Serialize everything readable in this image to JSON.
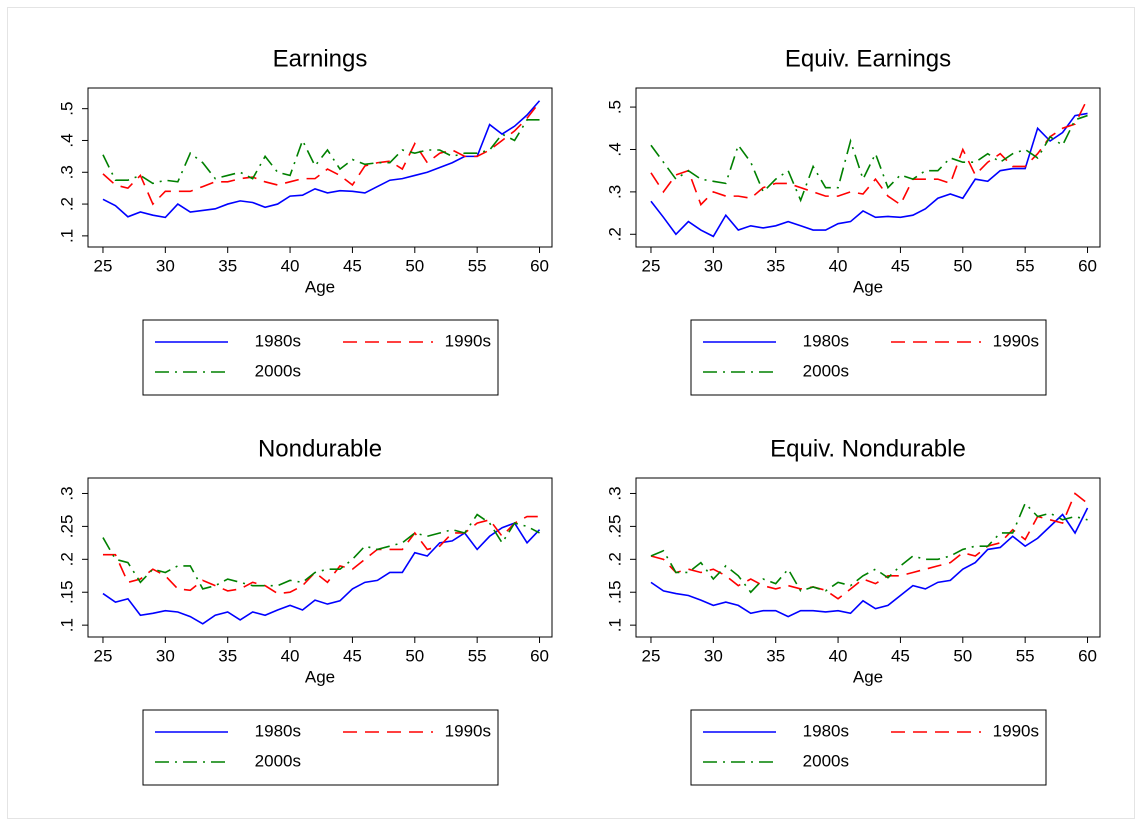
{
  "chart_data": [
    {
      "type": "line",
      "title": "Earnings",
      "xlabel": "Age",
      "x": [
        25,
        26,
        27,
        28,
        29,
        30,
        31,
        32,
        33,
        34,
        35,
        36,
        37,
        38,
        39,
        40,
        41,
        42,
        43,
        44,
        45,
        46,
        47,
        48,
        49,
        50,
        51,
        52,
        53,
        54,
        55,
        56,
        57,
        58,
        59,
        60
      ],
      "xlim": [
        23.8,
        61.0
      ],
      "xticks": [
        25,
        30,
        35,
        40,
        45,
        50,
        55,
        60
      ],
      "ylim": [
        0.065,
        0.565
      ],
      "yticks": [
        {
          "value": 0.1,
          "label": ".1"
        },
        {
          "value": 0.2,
          "label": ".2"
        },
        {
          "value": 0.3,
          "label": ".3"
        },
        {
          "value": 0.4,
          "label": ".4"
        },
        {
          "value": 0.5,
          "label": ".5"
        }
      ],
      "legend_position": "bottom",
      "series": [
        {
          "name": "1980s",
          "color": "#0000ff",
          "style": "solid",
          "values": [
            0.215,
            0.195,
            0.16,
            0.175,
            0.165,
            0.158,
            0.2,
            0.175,
            0.18,
            0.185,
            0.2,
            0.21,
            0.205,
            0.19,
            0.2,
            0.225,
            0.228,
            0.248,
            0.235,
            0.242,
            0.24,
            0.235,
            0.255,
            0.275,
            0.28,
            0.29,
            0.3,
            0.315,
            0.33,
            0.35,
            0.35,
            0.45,
            0.42,
            0.445,
            0.48,
            0.525
          ]
        },
        {
          "name": "1990s",
          "color": "#ff0000",
          "style": "dash",
          "values": [
            0.295,
            0.26,
            0.25,
            0.29,
            0.2,
            0.24,
            0.24,
            0.24,
            0.255,
            0.27,
            0.27,
            0.28,
            0.285,
            0.27,
            0.26,
            0.27,
            0.28,
            0.28,
            0.31,
            0.29,
            0.26,
            0.32,
            0.33,
            0.335,
            0.31,
            0.39,
            0.33,
            0.36,
            0.37,
            0.35,
            0.35,
            0.37,
            0.4,
            0.43,
            0.47,
            0.52
          ]
        },
        {
          "name": "2000s",
          "color": "#008000",
          "style": "dashdot",
          "values": [
            0.355,
            0.275,
            0.275,
            0.29,
            0.265,
            0.275,
            0.27,
            0.36,
            0.33,
            0.28,
            0.29,
            0.3,
            0.28,
            0.35,
            0.3,
            0.29,
            0.4,
            0.32,
            0.37,
            0.31,
            0.34,
            0.325,
            0.33,
            0.33,
            0.37,
            0.36,
            0.37,
            0.37,
            0.35,
            0.36,
            0.36,
            0.37,
            0.42,
            0.4,
            0.465,
            0.465
          ]
        }
      ]
    },
    {
      "type": "line",
      "title": "Equiv. Earnings",
      "xlabel": "Age",
      "x": [
        25,
        26,
        27,
        28,
        29,
        30,
        31,
        32,
        33,
        34,
        35,
        36,
        37,
        38,
        39,
        40,
        41,
        42,
        43,
        44,
        45,
        46,
        47,
        48,
        49,
        50,
        51,
        52,
        53,
        54,
        55,
        56,
        57,
        58,
        59,
        60
      ],
      "xlim": [
        23.8,
        61.0
      ],
      "xticks": [
        25,
        30,
        35,
        40,
        45,
        50,
        55,
        60
      ],
      "ylim": [
        0.17,
        0.545
      ],
      "yticks": [
        {
          "value": 0.2,
          "label": ".2"
        },
        {
          "value": 0.3,
          "label": ".3"
        },
        {
          "value": 0.4,
          "label": ".4"
        },
        {
          "value": 0.5,
          "label": ".5"
        }
      ],
      "legend_position": "bottom",
      "series": [
        {
          "name": "1980s",
          "color": "#0000ff",
          "style": "solid",
          "values": [
            0.278,
            0.24,
            0.2,
            0.23,
            0.21,
            0.195,
            0.245,
            0.21,
            0.22,
            0.215,
            0.22,
            0.23,
            0.22,
            0.21,
            0.21,
            0.225,
            0.23,
            0.255,
            0.24,
            0.242,
            0.24,
            0.245,
            0.26,
            0.285,
            0.295,
            0.285,
            0.33,
            0.325,
            0.35,
            0.355,
            0.355,
            0.45,
            0.42,
            0.44,
            0.48,
            0.485
          ]
        },
        {
          "name": "1990s",
          "color": "#ff0000",
          "style": "dash",
          "values": [
            0.345,
            0.3,
            0.34,
            0.35,
            0.27,
            0.3,
            0.29,
            0.29,
            0.285,
            0.31,
            0.32,
            0.32,
            0.31,
            0.3,
            0.29,
            0.29,
            0.3,
            0.295,
            0.33,
            0.29,
            0.27,
            0.33,
            0.33,
            0.33,
            0.32,
            0.4,
            0.34,
            0.37,
            0.39,
            0.36,
            0.36,
            0.39,
            0.43,
            0.45,
            0.46,
            0.52
          ]
        },
        {
          "name": "2000s",
          "color": "#008000",
          "style": "dashdot",
          "values": [
            0.41,
            0.37,
            0.33,
            0.35,
            0.33,
            0.325,
            0.32,
            0.41,
            0.37,
            0.3,
            0.33,
            0.35,
            0.28,
            0.36,
            0.31,
            0.31,
            0.42,
            0.33,
            0.39,
            0.31,
            0.34,
            0.33,
            0.35,
            0.35,
            0.38,
            0.37,
            0.37,
            0.39,
            0.37,
            0.39,
            0.4,
            0.38,
            0.43,
            0.41,
            0.47,
            0.48
          ]
        }
      ]
    },
    {
      "type": "line",
      "title": "Nondurable",
      "xlabel": "Age",
      "x": [
        25,
        26,
        27,
        28,
        29,
        30,
        31,
        32,
        33,
        34,
        35,
        36,
        37,
        38,
        39,
        40,
        41,
        42,
        43,
        44,
        45,
        46,
        47,
        48,
        49,
        50,
        51,
        52,
        53,
        54,
        55,
        56,
        57,
        58,
        59,
        60
      ],
      "xlim": [
        23.8,
        61.0
      ],
      "xticks": [
        25,
        30,
        35,
        40,
        45,
        50,
        55,
        60
      ],
      "ylim": [
        0.082,
        0.3235
      ],
      "yticks": [
        {
          "value": 0.1,
          "label": ".1"
        },
        {
          "value": 0.15,
          "label": ".15"
        },
        {
          "value": 0.2,
          "label": ".2"
        },
        {
          "value": 0.25,
          "label": ".25"
        },
        {
          "value": 0.3,
          "label": ".3"
        }
      ],
      "legend_position": "bottom",
      "series": [
        {
          "name": "1980s",
          "color": "#0000ff",
          "style": "solid",
          "values": [
            0.148,
            0.135,
            0.14,
            0.115,
            0.118,
            0.122,
            0.12,
            0.113,
            0.102,
            0.115,
            0.12,
            0.108,
            0.12,
            0.115,
            0.123,
            0.13,
            0.123,
            0.138,
            0.132,
            0.137,
            0.155,
            0.165,
            0.168,
            0.18,
            0.18,
            0.21,
            0.205,
            0.225,
            0.228,
            0.24,
            0.215,
            0.235,
            0.248,
            0.255,
            0.225,
            0.245
          ]
        },
        {
          "name": "1990s",
          "color": "#ff0000",
          "style": "dash",
          "values": [
            0.207,
            0.207,
            0.165,
            0.17,
            0.185,
            0.175,
            0.155,
            0.153,
            0.168,
            0.16,
            0.152,
            0.155,
            0.165,
            0.16,
            0.148,
            0.15,
            0.16,
            0.18,
            0.165,
            0.19,
            0.185,
            0.2,
            0.215,
            0.215,
            0.215,
            0.24,
            0.215,
            0.22,
            0.24,
            0.24,
            0.255,
            0.26,
            0.235,
            0.255,
            0.265,
            0.265
          ]
        },
        {
          "name": "2000s",
          "color": "#008000",
          "style": "dashdot",
          "values": [
            0.233,
            0.2,
            0.195,
            0.165,
            0.185,
            0.18,
            0.19,
            0.19,
            0.155,
            0.16,
            0.17,
            0.165,
            0.16,
            0.16,
            0.16,
            0.168,
            0.165,
            0.18,
            0.185,
            0.185,
            0.2,
            0.22,
            0.215,
            0.22,
            0.225,
            0.24,
            0.235,
            0.24,
            0.245,
            0.24,
            0.268,
            0.255,
            0.225,
            0.255,
            0.25,
            0.24
          ]
        }
      ]
    },
    {
      "type": "line",
      "title": "Equiv. Nondurable",
      "xlabel": "Age",
      "x": [
        25,
        26,
        27,
        28,
        29,
        30,
        31,
        32,
        33,
        34,
        35,
        36,
        37,
        38,
        39,
        40,
        41,
        42,
        43,
        44,
        45,
        46,
        47,
        48,
        49,
        50,
        51,
        52,
        53,
        54,
        55,
        56,
        57,
        58,
        59,
        60
      ],
      "xlim": [
        23.8,
        61.0
      ],
      "xticks": [
        25,
        30,
        35,
        40,
        45,
        50,
        55,
        60
      ],
      "ylim": [
        0.082,
        0.3235
      ],
      "yticks": [
        {
          "value": 0.1,
          "label": ".1"
        },
        {
          "value": 0.15,
          "label": ".15"
        },
        {
          "value": 0.2,
          "label": ".2"
        },
        {
          "value": 0.25,
          "label": ".25"
        },
        {
          "value": 0.3,
          "label": ".3"
        }
      ],
      "legend_position": "bottom",
      "series": [
        {
          "name": "1980s",
          "color": "#0000ff",
          "style": "solid",
          "values": [
            0.165,
            0.152,
            0.148,
            0.145,
            0.138,
            0.13,
            0.135,
            0.13,
            0.118,
            0.122,
            0.122,
            0.113,
            0.122,
            0.122,
            0.12,
            0.122,
            0.118,
            0.137,
            0.125,
            0.13,
            0.145,
            0.16,
            0.155,
            0.165,
            0.168,
            0.185,
            0.195,
            0.215,
            0.218,
            0.235,
            0.22,
            0.232,
            0.25,
            0.268,
            0.24,
            0.278
          ]
        },
        {
          "name": "1990s",
          "color": "#ff0000",
          "style": "dash",
          "values": [
            0.205,
            0.2,
            0.18,
            0.185,
            0.18,
            0.185,
            0.175,
            0.16,
            0.17,
            0.16,
            0.155,
            0.16,
            0.155,
            0.158,
            0.153,
            0.14,
            0.155,
            0.17,
            0.163,
            0.175,
            0.175,
            0.18,
            0.185,
            0.19,
            0.195,
            0.21,
            0.205,
            0.22,
            0.225,
            0.245,
            0.23,
            0.265,
            0.26,
            0.255,
            0.3,
            0.285
          ]
        },
        {
          "name": "2000s",
          "color": "#008000",
          "style": "dashdot",
          "values": [
            0.205,
            0.213,
            0.18,
            0.18,
            0.195,
            0.17,
            0.19,
            0.175,
            0.15,
            0.17,
            0.163,
            0.185,
            0.152,
            0.158,
            0.152,
            0.165,
            0.16,
            0.175,
            0.185,
            0.172,
            0.19,
            0.205,
            0.2,
            0.2,
            0.205,
            0.215,
            0.22,
            0.22,
            0.24,
            0.24,
            0.285,
            0.265,
            0.27,
            0.26,
            0.265,
            0.26
          ]
        }
      ]
    }
  ]
}
